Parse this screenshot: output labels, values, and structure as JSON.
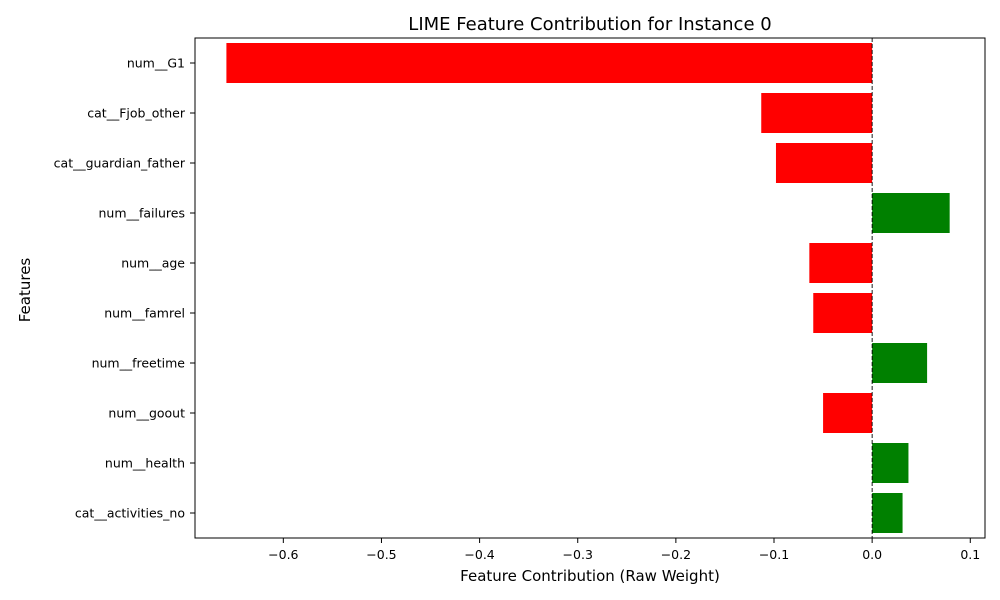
{
  "chart_data": {
    "type": "bar",
    "orientation": "horizontal",
    "title": "LIME Feature Contribution for Instance 0",
    "xlabel": "Feature Contribution (Raw Weight)",
    "ylabel": "Features",
    "xlim": [
      -0.69,
      0.115
    ],
    "xticks": [
      -0.6,
      -0.5,
      -0.4,
      -0.3,
      -0.2,
      -0.1,
      0.0,
      0.1
    ],
    "xtick_labels": [
      "−0.6",
      "−0.5",
      "−0.4",
      "−0.3",
      "−0.2",
      "−0.1",
      "0.0",
      "0.1"
    ],
    "categories": [
      "num__G1",
      "cat__Fjob_other",
      "cat__guardian_father",
      "num__failures",
      "num__age",
      "num__famrel",
      "num__freetime",
      "num__goout",
      "num__health",
      "cat__activities_no"
    ],
    "values": [
      -0.658,
      -0.113,
      -0.098,
      0.079,
      -0.064,
      -0.06,
      0.056,
      -0.05,
      0.037,
      0.031
    ],
    "negative_color": "#ff0000",
    "positive_color": "#008000",
    "reference_line": {
      "x": 0.0,
      "style": "dashed",
      "color": "#000000"
    },
    "grid": false
  }
}
